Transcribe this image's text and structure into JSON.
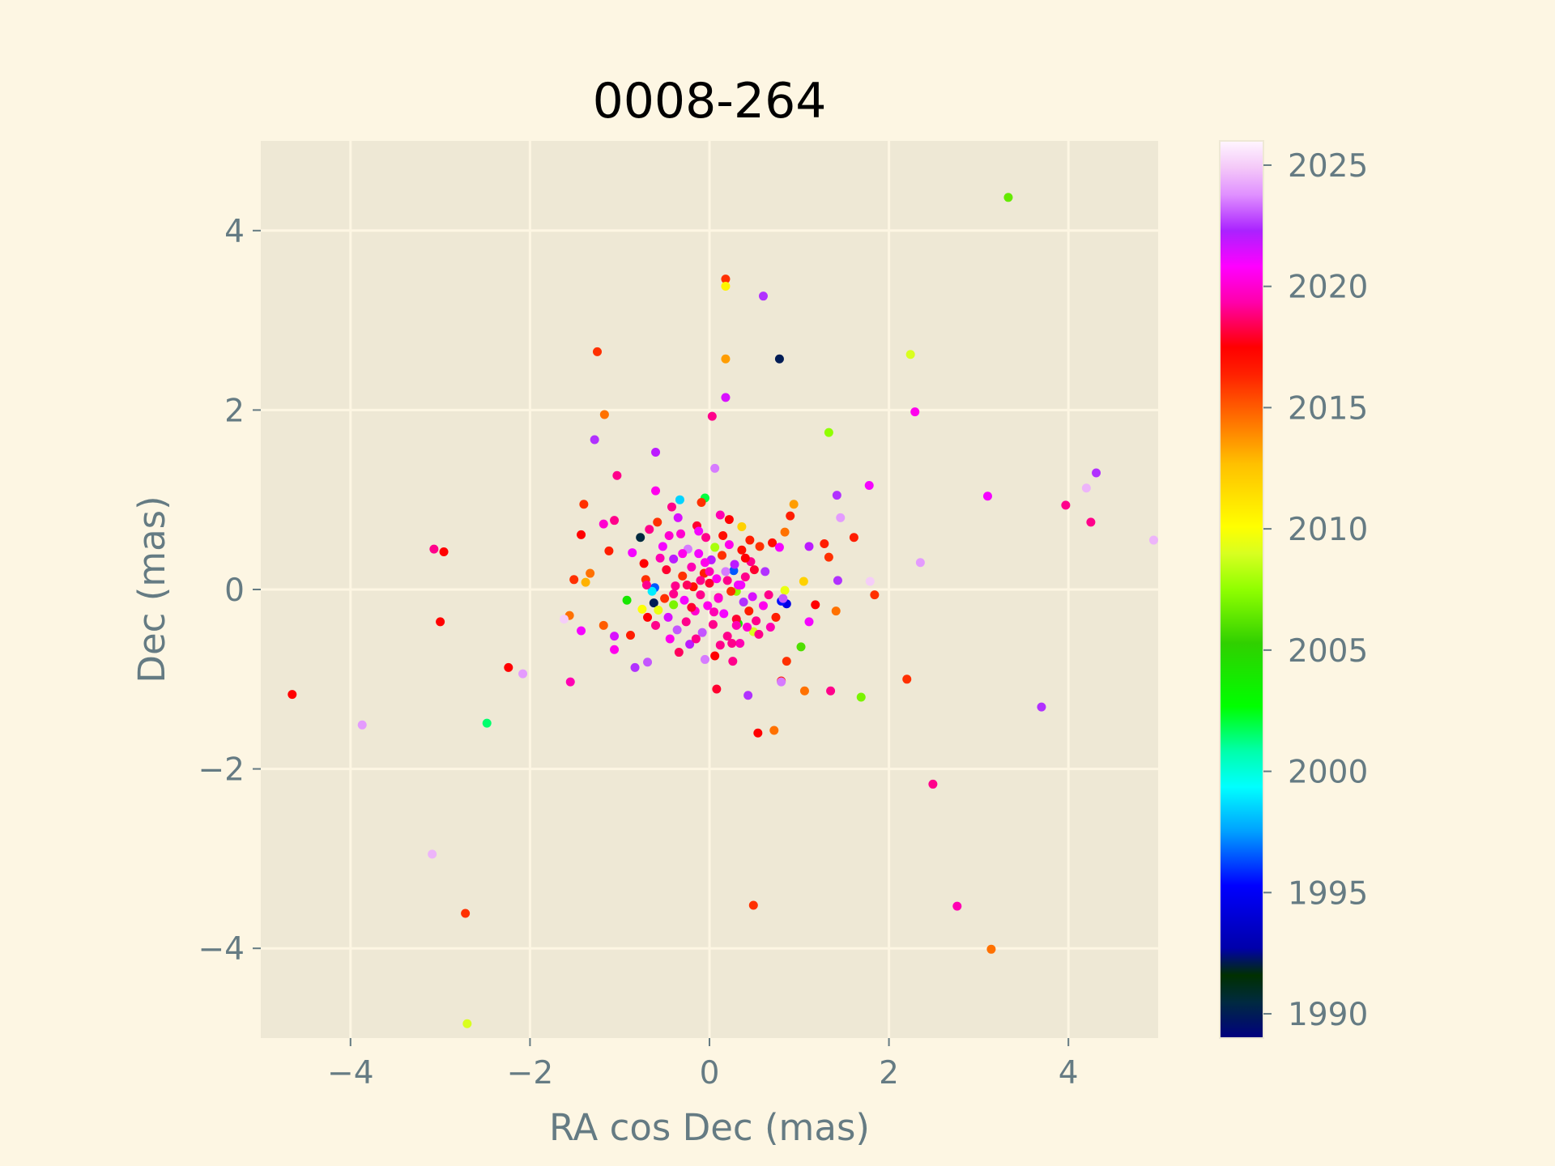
{
  "chart_data": {
    "type": "scatter",
    "title": "0008-264",
    "xlabel": "RA cos Dec (mas)",
    "ylabel": "Dec (mas)",
    "xlim": [
      -5,
      5
    ],
    "ylim": [
      -5,
      5
    ],
    "xticks": [
      -4,
      -2,
      0,
      2,
      4
    ],
    "yticks": [
      -4,
      -2,
      0,
      2,
      4
    ],
    "xtick_labels": [
      "−4",
      "−2",
      "0",
      "2",
      "4"
    ],
    "ytick_labels": [
      "−4",
      "−2",
      "0",
      "2",
      "4"
    ],
    "grid": true,
    "colors": {
      "figure_bg": "#fdf6e3",
      "axes_bg": "#eee8d5",
      "grid": "#fdf6e3",
      "text": "#657b83",
      "title": "#000000"
    },
    "colorbar": {
      "label": "",
      "colormap": "gist_ncar",
      "range": [
        1989,
        2026
      ],
      "ticks": [
        1990,
        1995,
        2000,
        2005,
        2010,
        2015,
        2020,
        2025
      ],
      "tick_labels": [
        "1990",
        "1995",
        "2000",
        "2005",
        "2010",
        "2015",
        "2020",
        "2025"
      ]
    },
    "points": [
      {
        "x": 3.33,
        "y": 4.37,
        "year": 2006.5
      },
      {
        "x": 0.18,
        "y": 3.46,
        "year": 2016.0
      },
      {
        "x": 0.18,
        "y": 3.38,
        "year": 2010.5
      },
      {
        "x": 0.6,
        "y": 3.27,
        "year": 2022.5
      },
      {
        "x": -1.25,
        "y": 2.65,
        "year": 2016.0
      },
      {
        "x": 0.18,
        "y": 2.57,
        "year": 2013.5
      },
      {
        "x": 0.78,
        "y": 2.57,
        "year": 1990.0
      },
      {
        "x": 2.24,
        "y": 2.62,
        "year": 2009.0
      },
      {
        "x": 0.18,
        "y": 2.14,
        "year": 2021.5
      },
      {
        "x": -1.17,
        "y": 1.95,
        "year": 2014.5
      },
      {
        "x": 2.29,
        "y": 1.98,
        "year": 2020.5
      },
      {
        "x": 0.03,
        "y": 1.93,
        "year": 2019.0
      },
      {
        "x": 1.33,
        "y": 1.75,
        "year": 2007.5
      },
      {
        "x": -1.28,
        "y": 1.67,
        "year": 2022.5
      },
      {
        "x": -0.6,
        "y": 1.53,
        "year": 2022.0
      },
      {
        "x": 0.06,
        "y": 1.35,
        "year": 2023.5
      },
      {
        "x": -1.03,
        "y": 1.27,
        "year": 2019.0
      },
      {
        "x": 1.78,
        "y": 1.16,
        "year": 2021.0
      },
      {
        "x": 4.31,
        "y": 1.3,
        "year": 2022.5
      },
      {
        "x": 4.2,
        "y": 1.13,
        "year": 2024.5
      },
      {
        "x": 3.1,
        "y": 1.04,
        "year": 2021.0
      },
      {
        "x": 1.42,
        "y": 1.05,
        "year": 2022.5
      },
      {
        "x": -0.6,
        "y": 1.1,
        "year": 2020.5
      },
      {
        "x": -0.33,
        "y": 1.0,
        "year": 1998.5
      },
      {
        "x": -0.05,
        "y": 1.02,
        "year": 2002.0
      },
      {
        "x": -0.09,
        "y": 0.97,
        "year": 2016.0
      },
      {
        "x": 0.94,
        "y": 0.95,
        "year": 2013.5
      },
      {
        "x": 3.97,
        "y": 0.94,
        "year": 2019.0
      },
      {
        "x": -1.4,
        "y": 0.95,
        "year": 2016.0
      },
      {
        "x": 1.46,
        "y": 0.8,
        "year": 2024.0
      },
      {
        "x": 4.25,
        "y": 0.75,
        "year": 2019.0
      },
      {
        "x": 0.9,
        "y": 0.82,
        "year": 2016.5
      },
      {
        "x": -1.06,
        "y": 0.77,
        "year": 2019.0
      },
      {
        "x": -1.18,
        "y": 0.73,
        "year": 2020.0
      },
      {
        "x": 0.36,
        "y": 0.7,
        "year": 2012.0
      },
      {
        "x": 0.84,
        "y": 0.64,
        "year": 2014.5
      },
      {
        "x": 1.61,
        "y": 0.58,
        "year": 2016.5
      },
      {
        "x": -1.43,
        "y": 0.61,
        "year": 2017.5
      },
      {
        "x": 4.95,
        "y": 0.55,
        "year": 2024.5
      },
      {
        "x": 1.28,
        "y": 0.51,
        "year": 2016.5
      },
      {
        "x": 1.11,
        "y": 0.48,
        "year": 2022.0
      },
      {
        "x": -3.07,
        "y": 0.45,
        "year": 2019.0
      },
      {
        "x": -2.96,
        "y": 0.42,
        "year": 2017.5
      },
      {
        "x": -1.12,
        "y": 0.43,
        "year": 2016.5
      },
      {
        "x": 1.33,
        "y": 0.36,
        "year": 2016.0
      },
      {
        "x": 2.35,
        "y": 0.3,
        "year": 2024.0
      },
      {
        "x": -1.33,
        "y": 0.18,
        "year": 2014.5
      },
      {
        "x": -1.51,
        "y": 0.11,
        "year": 2016.0
      },
      {
        "x": -1.38,
        "y": 0.08,
        "year": 2013.0
      },
      {
        "x": 1.05,
        "y": 0.09,
        "year": 2012.0
      },
      {
        "x": 1.43,
        "y": 0.1,
        "year": 2022.5
      },
      {
        "x": 1.79,
        "y": 0.09,
        "year": 2025.0
      },
      {
        "x": 1.84,
        "y": -0.06,
        "year": 2016.0
      },
      {
        "x": 1.18,
        "y": -0.17,
        "year": 2017.5
      },
      {
        "x": 1.41,
        "y": -0.24,
        "year": 2014.5
      },
      {
        "x": -1.56,
        "y": -0.29,
        "year": 2014.5
      },
      {
        "x": -1.62,
        "y": -0.33,
        "year": 2025.0
      },
      {
        "x": -3.0,
        "y": -0.36,
        "year": 2017.5
      },
      {
        "x": 1.11,
        "y": -0.36,
        "year": 2021.0
      },
      {
        "x": -1.18,
        "y": -0.4,
        "year": 2015.0
      },
      {
        "x": -1.43,
        "y": -0.46,
        "year": 2021.0
      },
      {
        "x": -0.88,
        "y": -0.51,
        "year": 2016.5
      },
      {
        "x": -1.06,
        "y": -0.52,
        "year": 2021.5
      },
      {
        "x": -1.06,
        "y": -0.67,
        "year": 2020.5
      },
      {
        "x": 1.02,
        "y": -0.64,
        "year": 2006.0
      },
      {
        "x": 0.86,
        "y": -0.8,
        "year": 2016.0
      },
      {
        "x": -0.69,
        "y": -0.81,
        "year": 2023.0
      },
      {
        "x": -0.83,
        "y": -0.87,
        "year": 2022.5
      },
      {
        "x": -2.24,
        "y": -0.87,
        "year": 2017.5
      },
      {
        "x": -2.08,
        "y": -0.94,
        "year": 2024.0
      },
      {
        "x": 2.2,
        "y": -1.0,
        "year": 2016.0
      },
      {
        "x": 0.8,
        "y": -1.02,
        "year": 2016.5
      },
      {
        "x": 0.8,
        "y": -1.03,
        "year": 2023.5
      },
      {
        "x": -1.55,
        "y": -1.03,
        "year": 2019.5
      },
      {
        "x": 0.08,
        "y": -1.11,
        "year": 2018.0
      },
      {
        "x": 1.06,
        "y": -1.13,
        "year": 2014.5
      },
      {
        "x": 1.35,
        "y": -1.13,
        "year": 2019.0
      },
      {
        "x": 0.43,
        "y": -1.18,
        "year": 2022.5
      },
      {
        "x": -4.65,
        "y": -1.17,
        "year": 2017.5
      },
      {
        "x": 1.69,
        "y": -1.2,
        "year": 2007.0
      },
      {
        "x": 3.7,
        "y": -1.31,
        "year": 2022.5
      },
      {
        "x": -2.48,
        "y": -1.49,
        "year": 2001.5
      },
      {
        "x": -3.87,
        "y": -1.51,
        "year": 2024.0
      },
      {
        "x": 0.72,
        "y": -1.57,
        "year": 2014.5
      },
      {
        "x": 0.54,
        "y": -1.6,
        "year": 2017.5
      },
      {
        "x": 2.49,
        "y": -2.17,
        "year": 2019.0
      },
      {
        "x": -3.09,
        "y": -2.95,
        "year": 2024.5
      },
      {
        "x": 0.49,
        "y": -3.52,
        "year": 2016.0
      },
      {
        "x": 2.76,
        "y": -3.53,
        "year": 2019.5
      },
      {
        "x": -2.72,
        "y": -3.61,
        "year": 2016.0
      },
      {
        "x": 3.14,
        "y": -4.01,
        "year": 2014.5
      },
      {
        "x": -2.7,
        "y": -4.84,
        "year": 2009.0
      },
      {
        "x": -0.77,
        "y": 0.58,
        "year": 1990.5
      },
      {
        "x": -0.61,
        "y": 0.02,
        "year": 1996.5
      },
      {
        "x": -0.62,
        "y": -0.15,
        "year": 1990.0
      },
      {
        "x": -0.92,
        "y": -0.12,
        "year": 2004.0
      },
      {
        "x": -0.57,
        "y": -0.23,
        "year": 2009.5
      },
      {
        "x": -0.4,
        "y": -0.17,
        "year": 2007.0
      },
      {
        "x": 0.86,
        "y": -0.16,
        "year": 1994.5
      },
      {
        "x": 0.8,
        "y": -0.13,
        "year": 1995.5
      },
      {
        "x": 0.27,
        "y": 0.21,
        "year": 1996.5
      },
      {
        "x": 0.32,
        "y": -0.38,
        "year": 2004.0
      },
      {
        "x": 0.49,
        "y": -0.47,
        "year": 2009.0
      },
      {
        "x": 0.84,
        "y": -0.01,
        "year": 2009.5
      },
      {
        "x": 0.3,
        "y": -0.02,
        "year": 2007.5
      },
      {
        "x": 0.06,
        "y": 0.47,
        "year": 2008.0
      },
      {
        "x": -0.64,
        "y": -0.02,
        "year": 1999.0
      },
      {
        "x": -0.75,
        "y": -0.22,
        "year": 2010.0
      },
      {
        "x": -0.86,
        "y": 0.41,
        "year": 2021.0
      },
      {
        "x": -0.73,
        "y": 0.29,
        "year": 2017.5
      },
      {
        "x": -0.71,
        "y": 0.11,
        "year": 2016.0
      },
      {
        "x": -0.69,
        "y": -0.31,
        "year": 2017.5
      },
      {
        "x": -0.67,
        "y": 0.67,
        "year": 2019.0
      },
      {
        "x": -0.58,
        "y": 0.75,
        "year": 2016.0
      },
      {
        "x": -0.52,
        "y": 0.48,
        "year": 2021.0
      },
      {
        "x": -0.48,
        "y": 0.22,
        "year": 2018.0
      },
      {
        "x": -0.46,
        "y": -0.31,
        "year": 2021.5
      },
      {
        "x": -0.44,
        "y": -0.55,
        "year": 2020.5
      },
      {
        "x": -0.42,
        "y": 0.92,
        "year": 2019.0
      },
      {
        "x": -0.4,
        "y": 0.34,
        "year": 2022.0
      },
      {
        "x": -0.38,
        "y": 0.04,
        "year": 2019.0
      },
      {
        "x": -0.36,
        "y": -0.45,
        "year": 2023.0
      },
      {
        "x": -0.34,
        "y": -0.7,
        "year": 2018.5
      },
      {
        "x": -0.32,
        "y": 0.62,
        "year": 2020.0
      },
      {
        "x": -0.3,
        "y": 0.15,
        "year": 2016.0
      },
      {
        "x": -0.28,
        "y": -0.12,
        "year": 2021.0
      },
      {
        "x": -0.26,
        "y": -0.36,
        "year": 2019.0
      },
      {
        "x": -0.24,
        "y": 0.45,
        "year": 2023.5
      },
      {
        "x": -0.22,
        "y": -0.61,
        "year": 2022.0
      },
      {
        "x": -0.2,
        "y": 0.25,
        "year": 2019.5
      },
      {
        "x": -0.18,
        "y": 0.03,
        "year": 2017.0
      },
      {
        "x": -0.16,
        "y": -0.24,
        "year": 2020.0
      },
      {
        "x": -0.14,
        "y": 0.71,
        "year": 2018.0
      },
      {
        "x": -0.12,
        "y": 0.4,
        "year": 2021.0
      },
      {
        "x": -0.1,
        "y": -0.06,
        "year": 2019.0
      },
      {
        "x": -0.08,
        "y": -0.48,
        "year": 2023.0
      },
      {
        "x": -0.06,
        "y": 0.18,
        "year": 2016.5
      },
      {
        "x": -0.04,
        "y": 0.58,
        "year": 2019.0
      },
      {
        "x": -0.02,
        "y": -0.18,
        "year": 2020.5
      },
      {
        "x": 0.0,
        "y": 0.07,
        "year": 2018.0
      },
      {
        "x": 0.02,
        "y": 0.33,
        "year": 2022.0
      },
      {
        "x": 0.04,
        "y": -0.39,
        "year": 2019.0
      },
      {
        "x": 0.06,
        "y": -0.74,
        "year": 2017.5
      },
      {
        "x": 0.08,
        "y": 0.12,
        "year": 2020.5
      },
      {
        "x": 0.1,
        "y": -0.09,
        "year": 2019.0
      },
      {
        "x": 0.12,
        "y": 0.83,
        "year": 2019.5
      },
      {
        "x": 0.14,
        "y": 0.38,
        "year": 2016.0
      },
      {
        "x": 0.16,
        "y": -0.27,
        "year": 2021.0
      },
      {
        "x": 0.18,
        "y": 0.2,
        "year": 2023.5
      },
      {
        "x": 0.2,
        "y": -0.52,
        "year": 2019.0
      },
      {
        "x": 0.22,
        "y": 0.5,
        "year": 2020.5
      },
      {
        "x": 0.24,
        "y": -0.02,
        "year": 2016.0
      },
      {
        "x": 0.26,
        "y": -0.8,
        "year": 2019.0
      },
      {
        "x": 0.28,
        "y": 0.28,
        "year": 2022.0
      },
      {
        "x": 0.3,
        "y": -0.33,
        "year": 2018.0
      },
      {
        "x": 0.32,
        "y": 0.05,
        "year": 2021.0
      },
      {
        "x": 0.34,
        "y": -0.6,
        "year": 2019.5
      },
      {
        "x": 0.36,
        "y": 0.44,
        "year": 2017.0
      },
      {
        "x": 0.38,
        "y": -0.14,
        "year": 2022.5
      },
      {
        "x": 0.4,
        "y": 0.14,
        "year": 2019.0
      },
      {
        "x": 0.42,
        "y": -0.42,
        "year": 2020.0
      },
      {
        "x": 0.44,
        "y": -0.24,
        "year": 2016.5
      },
      {
        "x": 0.46,
        "y": 0.31,
        "year": 2019.0
      },
      {
        "x": 0.48,
        "y": -0.08,
        "year": 2021.5
      },
      {
        "x": 0.5,
        "y": 0.22,
        "year": 2018.0
      },
      {
        "x": 0.52,
        "y": -0.35,
        "year": 2019.0
      },
      {
        "x": 0.56,
        "y": 0.48,
        "year": 2016.0
      },
      {
        "x": 0.6,
        "y": -0.18,
        "year": 2020.5
      },
      {
        "x": 0.62,
        "y": 0.2,
        "year": 2022.5
      },
      {
        "x": 0.66,
        "y": -0.06,
        "year": 2019.0
      },
      {
        "x": 0.7,
        "y": 0.52,
        "year": 2017.0
      },
      {
        "x": 0.74,
        "y": -0.31,
        "year": 2016.5
      },
      {
        "x": 0.78,
        "y": 0.47,
        "year": 2021.0
      },
      {
        "x": 0.82,
        "y": -0.1,
        "year": 2023.0
      },
      {
        "x": -0.55,
        "y": 0.35,
        "year": 2019.5
      },
      {
        "x": -0.5,
        "y": -0.1,
        "year": 2016.0
      },
      {
        "x": -0.45,
        "y": 0.6,
        "year": 2020.0
      },
      {
        "x": -0.6,
        "y": -0.4,
        "year": 2019.0
      },
      {
        "x": -0.35,
        "y": 0.8,
        "year": 2021.5
      },
      {
        "x": -0.25,
        "y": 0.05,
        "year": 2018.5
      },
      {
        "x": -0.15,
        "y": -0.55,
        "year": 2019.0
      },
      {
        "x": -0.05,
        "y": 0.3,
        "year": 2020.5
      },
      {
        "x": 0.05,
        "y": -0.25,
        "year": 2019.5
      },
      {
        "x": 0.15,
        "y": 0.6,
        "year": 2017.0
      },
      {
        "x": 0.25,
        "y": -0.6,
        "year": 2019.0
      },
      {
        "x": 0.35,
        "y": 0.05,
        "year": 2021.0
      },
      {
        "x": 0.45,
        "y": 0.55,
        "year": 2016.5
      },
      {
        "x": 0.55,
        "y": -0.5,
        "year": 2019.0
      },
      {
        "x": -0.1,
        "y": 0.1,
        "year": 2019.0
      },
      {
        "x": 0.1,
        "y": -0.1,
        "year": 2020.0
      },
      {
        "x": 0.0,
        "y": 0.2,
        "year": 2019.5
      },
      {
        "x": -0.2,
        "y": -0.2,
        "year": 2018.0
      },
      {
        "x": 0.2,
        "y": 0.1,
        "year": 2019.0
      },
      {
        "x": -0.3,
        "y": 0.4,
        "year": 2020.5
      },
      {
        "x": 0.3,
        "y": -0.4,
        "year": 2019.5
      },
      {
        "x": -0.4,
        "y": -0.05,
        "year": 2019.0
      },
      {
        "x": 0.4,
        "y": 0.35,
        "year": 2017.5
      },
      {
        "x": 0.12,
        "y": -0.62,
        "year": 2019.0
      },
      {
        "x": -0.12,
        "y": 0.65,
        "year": 2021.0
      },
      {
        "x": -0.7,
        "y": 0.05,
        "year": 2019.0
      },
      {
        "x": 0.68,
        "y": -0.42,
        "year": 2019.5
      },
      {
        "x": -0.05,
        "y": -0.78,
        "year": 2023.5
      },
      {
        "x": 0.22,
        "y": 0.78,
        "year": 2017.5
      }
    ]
  }
}
